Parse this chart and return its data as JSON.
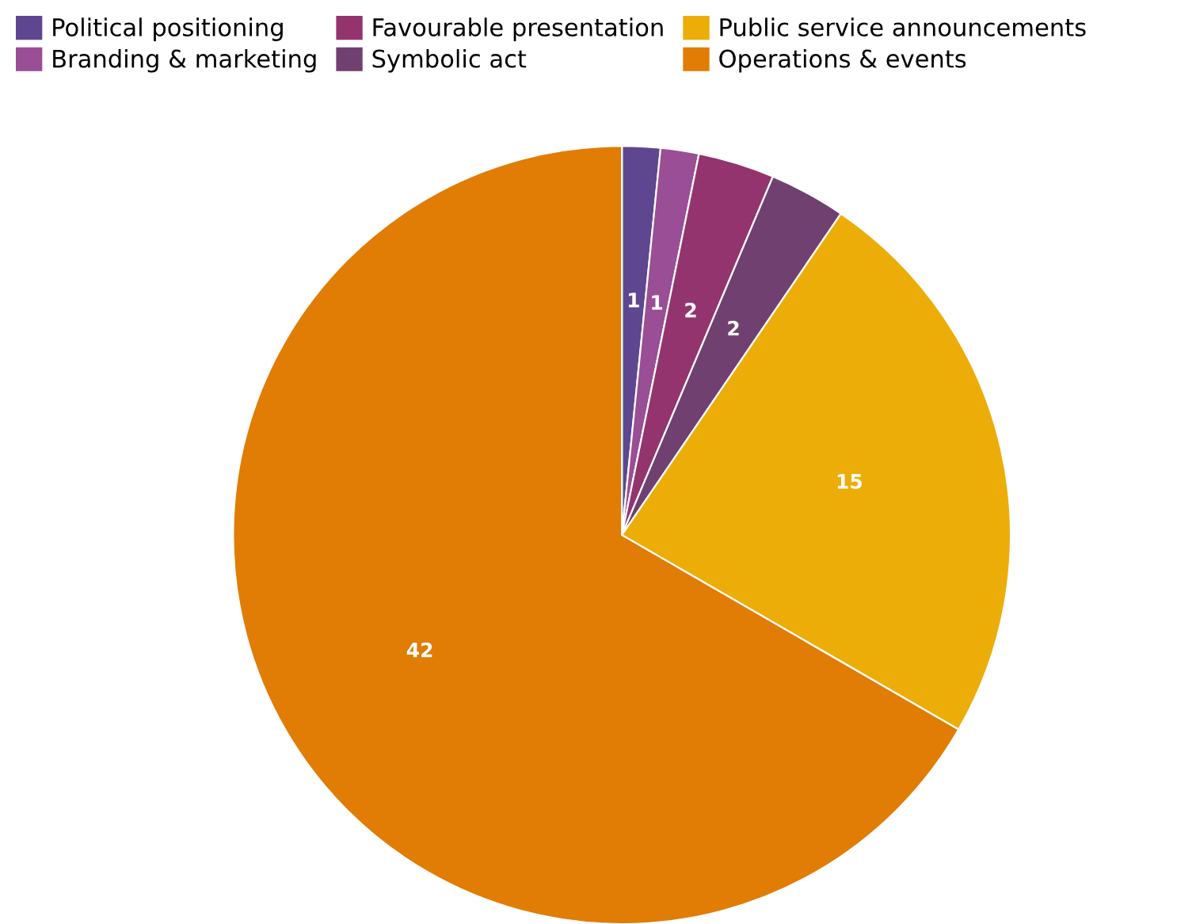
{
  "chart_data": {
    "type": "pie",
    "categories": [
      "Political positioning",
      "Branding & marketing",
      "Favourable presentation",
      "Symbolic act",
      "Public service announcements",
      "Operations & events"
    ],
    "values": [
      1,
      1,
      2,
      2,
      15,
      42
    ],
    "colors": [
      "#5f4690",
      "#994e95",
      "#94346e",
      "#6f4070",
      "#edad08",
      "#e17c05"
    ],
    "data_labels": true,
    "legend": "top left"
  }
}
